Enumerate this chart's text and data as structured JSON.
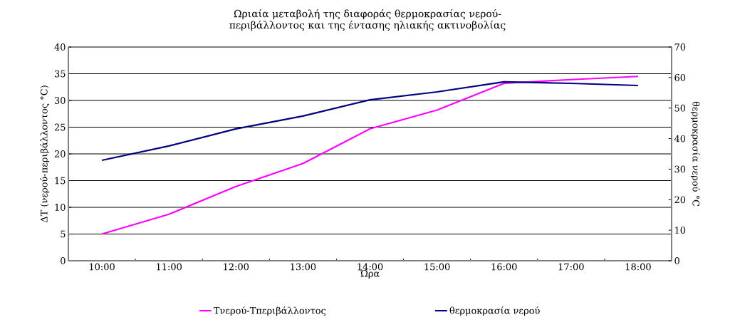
{
  "chart_data": {
    "type": "line",
    "title": "Ωριαία μεταβολή της διαφοράς θερμοκρασίας νερού-περιβάλλοντος και της έντασης ηλιακής ακτινοβολίας",
    "xlabel": "Ώρα",
    "ylabel": "ΔΤ (νερού-περιβάλλοντος °C)",
    "y2label": "θερμοκρασία νερού °C",
    "categories": [
      "10:00",
      "11:00",
      "12:00",
      "13:00",
      "14:00",
      "15:00",
      "16:00",
      "17:00",
      "18:00"
    ],
    "series": [
      {
        "name": "Τνερού-Τπεριβάλλοντος",
        "color": "#ff00ff",
        "values": [
          5,
          8.7,
          13.9,
          18.2,
          24.7,
          28.2,
          33.2,
          33.9,
          34.5
        ]
      },
      {
        "name": "θερμοκρασία νερού",
        "color": "#000080",
        "axis": "y2",
        "values": [
          32.9,
          37.6,
          43.2,
          47.4,
          52.7,
          55.3,
          58.6,
          58.1,
          57.4
        ]
      }
    ],
    "ylim": [
      0,
      40
    ],
    "yticks": [
      0,
      5,
      10,
      15,
      20,
      25,
      30,
      35,
      40
    ],
    "y2lim": [
      0,
      70
    ],
    "y2ticks": [
      0,
      10,
      20,
      30,
      40,
      50,
      60,
      70
    ],
    "grid": "y",
    "legend": "bottom",
    "marker": "none",
    "line_style": "solid"
  }
}
